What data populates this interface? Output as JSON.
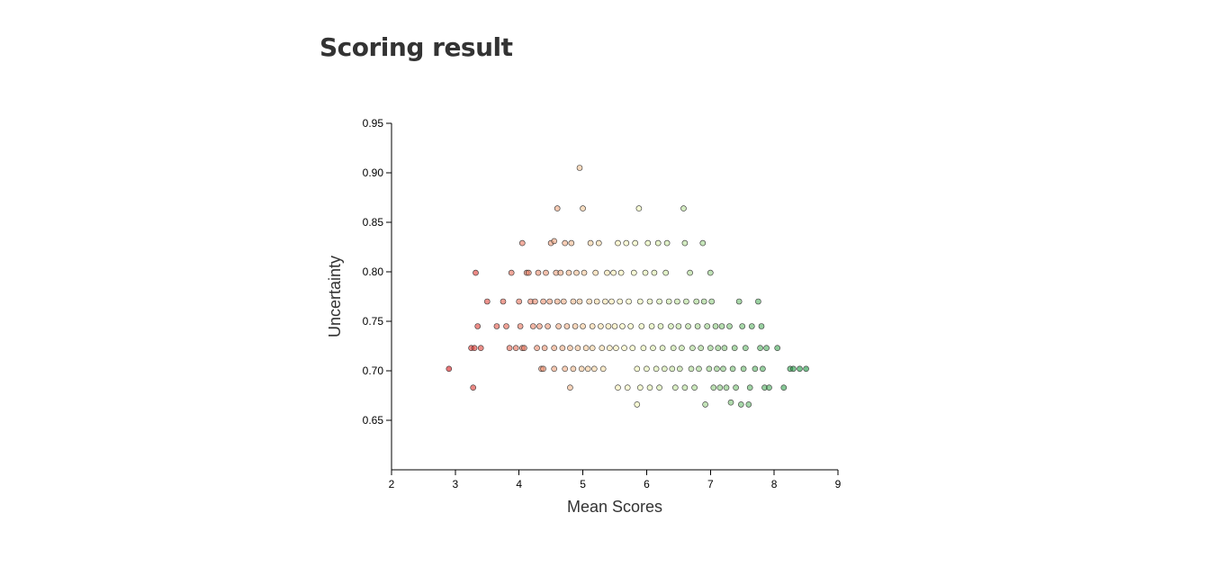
{
  "page": {
    "title": "Scoring result"
  },
  "chart_data": {
    "type": "scatter",
    "title": "",
    "xlabel": "Mean Scores",
    "ylabel": "Uncertainty",
    "xlim": [
      2,
      9
    ],
    "ylim": [
      0.6,
      0.95
    ],
    "x_ticks": [
      2,
      3,
      4,
      5,
      6,
      7,
      8,
      9
    ],
    "y_ticks": [
      0.65,
      0.7,
      0.75,
      0.8,
      0.85,
      0.9,
      0.95
    ],
    "y_tick_labels": [
      "0.65",
      "0.70",
      "0.75",
      "0.80",
      "0.85",
      "0.90",
      "0.95"
    ],
    "grid": false,
    "legend": "none",
    "color_scale": {
      "description": "diverging red-yellow-green by mean score",
      "low": "#d7191c",
      "mid": "#ffffbf",
      "high": "#1a9641",
      "domain": [
        2.9,
        5.7,
        8.5
      ]
    },
    "points": [
      [
        2.9,
        0.702
      ],
      [
        3.25,
        0.723
      ],
      [
        3.3,
        0.723
      ],
      [
        3.4,
        0.723
      ],
      [
        3.28,
        0.683
      ],
      [
        3.32,
        0.799
      ],
      [
        3.35,
        0.745
      ],
      [
        3.5,
        0.77
      ],
      [
        3.65,
        0.745
      ],
      [
        3.75,
        0.77
      ],
      [
        3.8,
        0.745
      ],
      [
        3.85,
        0.723
      ],
      [
        3.88,
        0.799
      ],
      [
        3.95,
        0.723
      ],
      [
        4.0,
        0.77
      ],
      [
        4.02,
        0.745
      ],
      [
        4.05,
        0.829
      ],
      [
        4.05,
        0.723
      ],
      [
        4.08,
        0.723
      ],
      [
        4.12,
        0.799
      ],
      [
        4.15,
        0.799
      ],
      [
        4.18,
        0.77
      ],
      [
        4.22,
        0.745
      ],
      [
        4.25,
        0.77
      ],
      [
        4.28,
        0.723
      ],
      [
        4.3,
        0.799
      ],
      [
        4.32,
        0.745
      ],
      [
        4.35,
        0.702
      ],
      [
        4.38,
        0.702
      ],
      [
        4.38,
        0.77
      ],
      [
        4.4,
        0.723
      ],
      [
        4.42,
        0.799
      ],
      [
        4.45,
        0.745
      ],
      [
        4.48,
        0.77
      ],
      [
        4.5,
        0.829
      ],
      [
        4.55,
        0.831
      ],
      [
        4.55,
        0.723
      ],
      [
        4.55,
        0.702
      ],
      [
        4.58,
        0.799
      ],
      [
        4.6,
        0.864
      ],
      [
        4.6,
        0.77
      ],
      [
        4.62,
        0.745
      ],
      [
        4.65,
        0.799
      ],
      [
        4.68,
        0.723
      ],
      [
        4.7,
        0.77
      ],
      [
        4.72,
        0.702
      ],
      [
        4.72,
        0.829
      ],
      [
        4.75,
        0.745
      ],
      [
        4.78,
        0.799
      ],
      [
        4.8,
        0.683
      ],
      [
        4.8,
        0.723
      ],
      [
        4.82,
        0.829
      ],
      [
        4.85,
        0.77
      ],
      [
        4.85,
        0.702
      ],
      [
        4.88,
        0.745
      ],
      [
        4.9,
        0.799
      ],
      [
        4.92,
        0.723
      ],
      [
        4.95,
        0.905
      ],
      [
        4.95,
        0.77
      ],
      [
        4.98,
        0.702
      ],
      [
        5.0,
        0.864
      ],
      [
        5.0,
        0.745
      ],
      [
        5.02,
        0.799
      ],
      [
        5.05,
        0.723
      ],
      [
        5.08,
        0.702
      ],
      [
        5.1,
        0.77
      ],
      [
        5.12,
        0.829
      ],
      [
        5.15,
        0.745
      ],
      [
        5.15,
        0.723
      ],
      [
        5.18,
        0.702
      ],
      [
        5.2,
        0.799
      ],
      [
        5.22,
        0.77
      ],
      [
        5.25,
        0.829
      ],
      [
        5.28,
        0.745
      ],
      [
        5.3,
        0.723
      ],
      [
        5.32,
        0.702
      ],
      [
        5.35,
        0.77
      ],
      [
        5.38,
        0.799
      ],
      [
        5.4,
        0.745
      ],
      [
        5.42,
        0.723
      ],
      [
        5.45,
        0.77
      ],
      [
        5.48,
        0.799
      ],
      [
        5.5,
        0.745
      ],
      [
        5.52,
        0.723
      ],
      [
        5.55,
        0.829
      ],
      [
        5.55,
        0.683
      ],
      [
        5.58,
        0.77
      ],
      [
        5.6,
        0.799
      ],
      [
        5.62,
        0.745
      ],
      [
        5.65,
        0.723
      ],
      [
        5.68,
        0.829
      ],
      [
        5.7,
        0.683
      ],
      [
        5.72,
        0.77
      ],
      [
        5.75,
        0.745
      ],
      [
        5.78,
        0.723
      ],
      [
        5.8,
        0.799
      ],
      [
        5.82,
        0.829
      ],
      [
        5.85,
        0.666
      ],
      [
        5.85,
        0.702
      ],
      [
        5.88,
        0.864
      ],
      [
        5.9,
        0.683
      ],
      [
        5.9,
        0.77
      ],
      [
        5.92,
        0.745
      ],
      [
        5.95,
        0.723
      ],
      [
        5.98,
        0.799
      ],
      [
        6.0,
        0.702
      ],
      [
        6.02,
        0.829
      ],
      [
        6.05,
        0.683
      ],
      [
        6.05,
        0.77
      ],
      [
        6.08,
        0.745
      ],
      [
        6.1,
        0.723
      ],
      [
        6.12,
        0.799
      ],
      [
        6.15,
        0.702
      ],
      [
        6.18,
        0.829
      ],
      [
        6.2,
        0.683
      ],
      [
        6.2,
        0.77
      ],
      [
        6.22,
        0.745
      ],
      [
        6.25,
        0.723
      ],
      [
        6.28,
        0.702
      ],
      [
        6.3,
        0.799
      ],
      [
        6.32,
        0.829
      ],
      [
        6.35,
        0.77
      ],
      [
        6.38,
        0.745
      ],
      [
        6.4,
        0.702
      ],
      [
        6.42,
        0.723
      ],
      [
        6.45,
        0.683
      ],
      [
        6.48,
        0.77
      ],
      [
        6.5,
        0.745
      ],
      [
        6.52,
        0.702
      ],
      [
        6.55,
        0.723
      ],
      [
        6.58,
        0.864
      ],
      [
        6.6,
        0.829
      ],
      [
        6.6,
        0.683
      ],
      [
        6.62,
        0.77
      ],
      [
        6.65,
        0.745
      ],
      [
        6.68,
        0.799
      ],
      [
        6.7,
        0.702
      ],
      [
        6.72,
        0.723
      ],
      [
        6.75,
        0.683
      ],
      [
        6.78,
        0.77
      ],
      [
        6.8,
        0.745
      ],
      [
        6.82,
        0.702
      ],
      [
        6.85,
        0.723
      ],
      [
        6.88,
        0.829
      ],
      [
        6.9,
        0.77
      ],
      [
        6.92,
        0.666
      ],
      [
        6.95,
        0.745
      ],
      [
        6.98,
        0.702
      ],
      [
        7.0,
        0.723
      ],
      [
        7.0,
        0.799
      ],
      [
        7.02,
        0.77
      ],
      [
        7.05,
        0.683
      ],
      [
        7.08,
        0.745
      ],
      [
        7.1,
        0.702
      ],
      [
        7.12,
        0.723
      ],
      [
        7.15,
        0.683
      ],
      [
        7.18,
        0.745
      ],
      [
        7.2,
        0.702
      ],
      [
        7.22,
        0.723
      ],
      [
        7.25,
        0.683
      ],
      [
        7.3,
        0.745
      ],
      [
        7.32,
        0.668
      ],
      [
        7.35,
        0.702
      ],
      [
        7.38,
        0.723
      ],
      [
        7.4,
        0.683
      ],
      [
        7.45,
        0.77
      ],
      [
        7.48,
        0.666
      ],
      [
        7.5,
        0.745
      ],
      [
        7.52,
        0.702
      ],
      [
        7.55,
        0.723
      ],
      [
        7.6,
        0.666
      ],
      [
        7.62,
        0.683
      ],
      [
        7.65,
        0.745
      ],
      [
        7.7,
        0.702
      ],
      [
        7.75,
        0.77
      ],
      [
        7.78,
        0.723
      ],
      [
        7.8,
        0.745
      ],
      [
        7.82,
        0.702
      ],
      [
        7.85,
        0.683
      ],
      [
        7.88,
        0.723
      ],
      [
        7.92,
        0.683
      ],
      [
        8.05,
        0.723
      ],
      [
        8.15,
        0.683
      ],
      [
        8.25,
        0.702
      ],
      [
        8.3,
        0.702
      ],
      [
        8.4,
        0.702
      ],
      [
        8.5,
        0.702
      ]
    ]
  }
}
